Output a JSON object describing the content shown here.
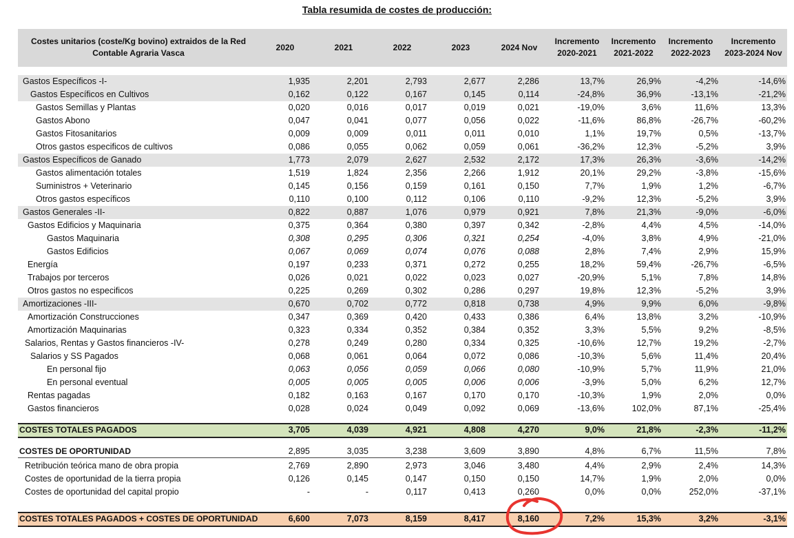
{
  "title": "Tabla resumida de costes de producción:",
  "header": {
    "label": "Costes unitarios (coste/Kg bovino) extraidos de la Red\nContable Agraria Vasca",
    "columns": [
      "2020",
      "2021",
      "2022",
      "2023",
      "2024 Nov",
      "Incremento\n2020-2021",
      "Incremento\n2021-2022",
      "Incremento\n2022-2023",
      "Incremento\n2023-2024 Nov"
    ]
  },
  "rows": [
    {
      "label": "Gastos Específicos -I-",
      "values": [
        "1,935",
        "2,201",
        "2,793",
        "2,677",
        "2,286",
        "13,7%",
        "26,9%",
        "-4,2%",
        "-14,6%"
      ]
    },
    {
      "label": "Gastos Específicos en Cultivos",
      "values": [
        "0,162",
        "0,122",
        "0,167",
        "0,145",
        "0,114",
        "-24,8%",
        "36,9%",
        "-13,1%",
        "-21,2%"
      ]
    },
    {
      "label": "Gastos Semillas y Plantas",
      "values": [
        "0,020",
        "0,016",
        "0,017",
        "0,019",
        "0,021",
        "-19,0%",
        "3,6%",
        "11,6%",
        "13,3%"
      ]
    },
    {
      "label": "Gastos Abono",
      "values": [
        "0,047",
        "0,041",
        "0,077",
        "0,056",
        "0,022",
        "-11,6%",
        "86,8%",
        "-26,7%",
        "-60,2%"
      ]
    },
    {
      "label": "Gastos Fitosanitarios",
      "values": [
        "0,009",
        "0,009",
        "0,011",
        "0,011",
        "0,010",
        "1,1%",
        "19,7%",
        "0,5%",
        "-13,7%"
      ]
    },
    {
      "label": "Otros gastos especificos de cultivos",
      "values": [
        "0,086",
        "0,055",
        "0,062",
        "0,059",
        "0,061",
        "-36,2%",
        "12,3%",
        "-5,2%",
        "3,9%"
      ]
    },
    {
      "label": "Gastos Específicos de Ganado",
      "values": [
        "1,773",
        "2,079",
        "2,627",
        "2,532",
        "2,172",
        "17,3%",
        "26,3%",
        "-3,6%",
        "-14,2%"
      ]
    },
    {
      "label": "Gastos alimentación totales",
      "values": [
        "1,519",
        "1,824",
        "2,356",
        "2,266",
        "1,912",
        "20,1%",
        "29,2%",
        "-3,8%",
        "-15,6%"
      ]
    },
    {
      "label": "Suministros + Veterinario",
      "values": [
        "0,145",
        "0,156",
        "0,159",
        "0,161",
        "0,150",
        "7,7%",
        "1,9%",
        "1,2%",
        "-6,7%"
      ]
    },
    {
      "label": "Otros gastos específicos",
      "values": [
        "0,110",
        "0,100",
        "0,112",
        "0,106",
        "0,110",
        "-9,2%",
        "12,3%",
        "-5,2%",
        "3,9%"
      ]
    },
    {
      "label": "Gastos Generales -II-",
      "values": [
        "0,822",
        "0,887",
        "1,076",
        "0,979",
        "0,921",
        "7,8%",
        "21,3%",
        "-9,0%",
        "-6,0%"
      ]
    },
    {
      "label": "Gastos Edificios y Maquinaria",
      "values": [
        "0,375",
        "0,364",
        "0,380",
        "0,397",
        "0,342",
        "-2,8%",
        "4,4%",
        "4,5%",
        "-14,0%"
      ]
    },
    {
      "label": "Gastos Maquinaria",
      "values": [
        "0,308",
        "0,295",
        "0,306",
        "0,321",
        "0,254",
        "-4,0%",
        "3,8%",
        "4,9%",
        "-21,0%"
      ]
    },
    {
      "label": "Gastos Edificios",
      "values": [
        "0,067",
        "0,069",
        "0,074",
        "0,076",
        "0,088",
        "2,8%",
        "7,4%",
        "2,9%",
        "15,9%"
      ]
    },
    {
      "label": "Energía",
      "values": [
        "0,197",
        "0,233",
        "0,371",
        "0,272",
        "0,255",
        "18,2%",
        "59,4%",
        "-26,7%",
        "-6,5%"
      ]
    },
    {
      "label": "Trabajos por terceros",
      "values": [
        "0,026",
        "0,021",
        "0,022",
        "0,023",
        "0,027",
        "-20,9%",
        "5,1%",
        "7,8%",
        "14,8%"
      ]
    },
    {
      "label": "Otros gastos no especificos",
      "values": [
        "0,225",
        "0,269",
        "0,302",
        "0,286",
        "0,297",
        "19,8%",
        "12,3%",
        "-5,2%",
        "3,9%"
      ]
    },
    {
      "label": "Amortizaciones -III-",
      "values": [
        "0,670",
        "0,702",
        "0,772",
        "0,818",
        "0,738",
        "4,9%",
        "9,9%",
        "6,0%",
        "-9,8%"
      ]
    },
    {
      "label": "Amortización Construcciones",
      "values": [
        "0,347",
        "0,369",
        "0,420",
        "0,433",
        "0,386",
        "6,4%",
        "13,8%",
        "3,2%",
        "-10,9%"
      ]
    },
    {
      "label": "Amortización Maquinarias",
      "values": [
        "0,323",
        "0,334",
        "0,352",
        "0,384",
        "0,352",
        "3,3%",
        "5,5%",
        "9,2%",
        "-8,5%"
      ]
    },
    {
      "label": "Salarios, Rentas y Gastos financieros -IV-",
      "values": [
        "0,278",
        "0,249",
        "0,280",
        "0,334",
        "0,325",
        "-10,6%",
        "12,7%",
        "19,2%",
        "-2,7%"
      ]
    },
    {
      "label": "Salarios y SS Pagados",
      "values": [
        "0,068",
        "0,061",
        "0,064",
        "0,072",
        "0,086",
        "-10,3%",
        "5,6%",
        "11,4%",
        "20,4%"
      ]
    },
    {
      "label": "En personal fijo",
      "values": [
        "0,063",
        "0,056",
        "0,059",
        "0,066",
        "0,080",
        "-10,9%",
        "5,7%",
        "11,9%",
        "21,0%"
      ]
    },
    {
      "label": "En personal eventual",
      "values": [
        "0,005",
        "0,005",
        "0,005",
        "0,006",
        "0,006",
        "-3,9%",
        "5,0%",
        "6,2%",
        "12,7%"
      ]
    },
    {
      "label": "Rentas pagadas",
      "values": [
        "0,182",
        "0,163",
        "0,167",
        "0,170",
        "0,170",
        "-10,3%",
        "1,9%",
        "2,0%",
        "0,0%"
      ]
    },
    {
      "label": "Gastos financieros",
      "values": [
        "0,028",
        "0,024",
        "0,049",
        "0,092",
        "0,069",
        "-13,6%",
        "102,0%",
        "87,1%",
        "-25,4%"
      ]
    },
    {
      "label": "COSTES TOTALES PAGADOS",
      "values": [
        "3,705",
        "4,039",
        "4,921",
        "4,808",
        "4,270",
        "9,0%",
        "21,8%",
        "-2,3%",
        "-11,2%"
      ]
    },
    {
      "label": "COSTES DE OPORTUNIDAD",
      "values": [
        "2,895",
        "3,035",
        "3,238",
        "3,609",
        "3,890",
        "4,8%",
        "6,7%",
        "11,5%",
        "7,8%"
      ]
    },
    {
      "label": "Retribución teórica mano de obra propia",
      "values": [
        "2,769",
        "2,890",
        "2,973",
        "3,046",
        "3,480",
        "4,4%",
        "2,9%",
        "2,4%",
        "14,3%"
      ]
    },
    {
      "label": "Costes de oportunidad de la tierra propia",
      "values": [
        "0,126",
        "0,145",
        "0,147",
        "0,150",
        "0,150",
        "14,7%",
        "1,9%",
        "2,0%",
        "0,0%"
      ]
    },
    {
      "label": "Costes de oportunidad del capital propio",
      "values": [
        "-",
        "-",
        "0,117",
        "0,413",
        "0,260",
        "0,0%",
        "0,0%",
        "252,0%",
        "-37,1%"
      ]
    },
    {
      "label": "COSTES TOTALES PAGADOS + COSTES DE OPORTUNIDAD",
      "values": [
        "6,600",
        "7,073",
        "8,159",
        "8,417",
        "8,160",
        "7,2%",
        "15,3%",
        "3,2%",
        "-3,1%"
      ]
    }
  ]
}
